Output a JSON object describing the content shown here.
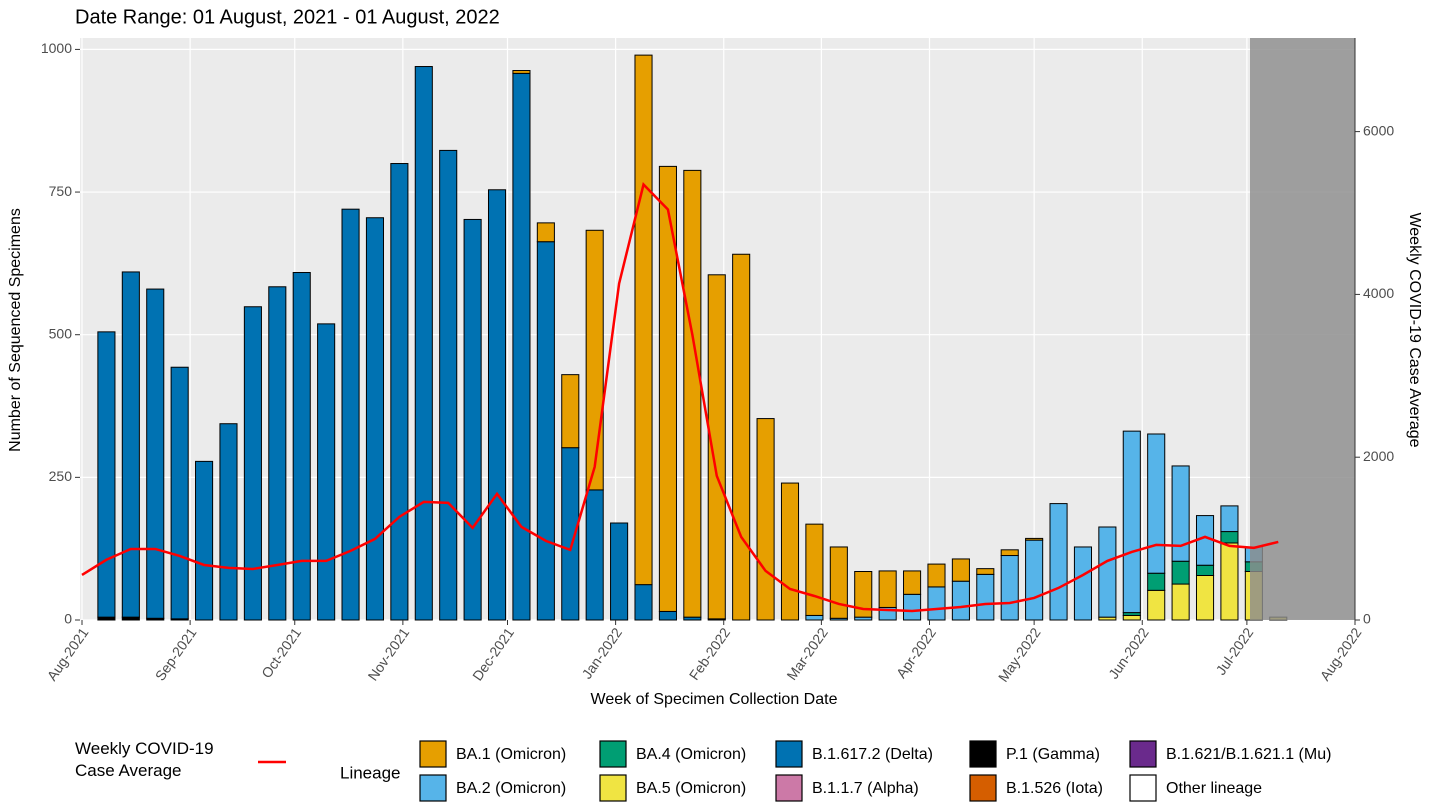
{
  "chart_data": {
    "type": "bar",
    "title": "Date Range: 01 August, 2021 - 01 August, 2022",
    "x_label": "Week of Specimen Collection Date",
    "y_label": "Number of Sequenced Specimens",
    "y2_label": "Weekly COVID-19 Case Average",
    "legend_title": "Lineage",
    "categories": [
      null,
      null,
      null,
      null,
      null,
      null,
      null,
      null,
      null,
      null,
      null,
      null,
      null,
      null,
      null,
      null,
      null,
      null,
      null,
      null,
      null,
      null,
      null,
      null,
      null,
      null,
      null,
      null,
      null,
      null,
      null,
      null,
      null,
      null,
      null,
      null,
      null,
      null,
      null,
      null,
      null,
      null,
      null,
      null,
      null,
      null,
      null,
      null,
      null,
      null
    ],
    "xlim": [
      0,
      52.1429
    ],
    "xticks": [
      {
        "value": 0,
        "label": "Aug-2021"
      },
      {
        "value": 4.4286,
        "label": "Sep-2021"
      },
      {
        "value": 8.7143,
        "label": "Oct-2021"
      },
      {
        "value": 13.1429,
        "label": "Nov-2021"
      },
      {
        "value": 17.4286,
        "label": "Dec-2021"
      },
      {
        "value": 21.8571,
        "label": "Jan-2022"
      },
      {
        "value": 26.2857,
        "label": "Feb-2022"
      },
      {
        "value": 30.2857,
        "label": "Mar-2022"
      },
      {
        "value": 34.7143,
        "label": "Apr-2022"
      },
      {
        "value": 39,
        "label": "May-2022"
      },
      {
        "value": 43.4286,
        "label": "Jun-2022"
      },
      {
        "value": 47.7143,
        "label": "Jul-2022"
      },
      {
        "value": 52.1429,
        "label": "Aug-2022"
      }
    ],
    "ylim": [
      0,
      1020
    ],
    "yticks": [
      0,
      250,
      500,
      750,
      1000
    ],
    "y2lim": [
      0,
      7150
    ],
    "y2ticks": [
      0,
      2000,
      4000,
      6000
    ],
    "grid": true,
    "series": [
      {
        "name": "BA.1 (Omicron)",
        "color": "#E69F00",
        "values": [
          0,
          0,
          0,
          0,
          0,
          0,
          0,
          0,
          0,
          0,
          0,
          0,
          0,
          0,
          0,
          0,
          0,
          0,
          5,
          33,
          128,
          455,
          0,
          928,
          780,
          783,
          603,
          641,
          353,
          240,
          160,
          125,
          80,
          64,
          41,
          40,
          39,
          10,
          10,
          3,
          0,
          0,
          0,
          0,
          0,
          0,
          0,
          0,
          0,
          0
        ]
      },
      {
        "name": "BA.2 (Omicron)",
        "color": "#56B4E9",
        "values": [
          0,
          0,
          0,
          0,
          0,
          0,
          0,
          0,
          0,
          0,
          0,
          0,
          0,
          0,
          0,
          0,
          0,
          0,
          0,
          0,
          0,
          0,
          0,
          0,
          0,
          0,
          0,
          0,
          0,
          0,
          8,
          3,
          5,
          22,
          45,
          58,
          68,
          80,
          113,
          140,
          204,
          128,
          158,
          318,
          244,
          167,
          87,
          45,
          26,
          0
        ]
      },
      {
        "name": "BA.4 (Omicron)",
        "color": "#009E73",
        "values": [
          0,
          0,
          0,
          0,
          0,
          0,
          0,
          0,
          0,
          0,
          0,
          0,
          0,
          0,
          0,
          0,
          0,
          0,
          0,
          0,
          0,
          0,
          0,
          0,
          0,
          0,
          0,
          0,
          0,
          0,
          0,
          0,
          0,
          0,
          0,
          0,
          0,
          0,
          0,
          0,
          0,
          0,
          0,
          5,
          30,
          40,
          18,
          20,
          17,
          0
        ]
      },
      {
        "name": "BA.5 (Omicron)",
        "color": "#F0E442",
        "values": [
          0,
          0,
          0,
          0,
          0,
          0,
          0,
          0,
          0,
          0,
          0,
          0,
          0,
          0,
          0,
          0,
          0,
          0,
          0,
          0,
          0,
          0,
          0,
          0,
          0,
          0,
          0,
          0,
          0,
          0,
          0,
          0,
          0,
          0,
          0,
          0,
          0,
          0,
          0,
          0,
          0,
          0,
          5,
          8,
          52,
          63,
          78,
          135,
          85,
          5
        ]
      },
      {
        "name": "B.1.617.2 (Delta)",
        "color": "#0072B2",
        "values": [
          0,
          500,
          605,
          577,
          441,
          278,
          344,
          549,
          584,
          609,
          519,
          720,
          705,
          800,
          970,
          823,
          702,
          754,
          958,
          663,
          302,
          228,
          170,
          62,
          15,
          5,
          2,
          0,
          0,
          0,
          0,
          0,
          0,
          0,
          0,
          0,
          0,
          0,
          0,
          0,
          0,
          0,
          0,
          0,
          0,
          0,
          0,
          0,
          0,
          0
        ]
      },
      {
        "name": "B.1.1.7 (Alpha)",
        "color": "#CC79A7",
        "values": [
          0,
          0,
          0,
          0,
          0,
          0,
          0,
          0,
          0,
          0,
          0,
          0,
          0,
          0,
          0,
          0,
          0,
          0,
          0,
          0,
          0,
          0,
          0,
          0,
          0,
          0,
          0,
          0,
          0,
          0,
          0,
          0,
          0,
          0,
          0,
          0,
          0,
          0,
          0,
          0,
          0,
          0,
          0,
          0,
          0,
          0,
          0,
          0,
          0,
          0
        ]
      },
      {
        "name": "P.1 (Gamma)",
        "color": "#000000",
        "values": [
          0,
          5,
          5,
          3,
          2,
          0,
          0,
          0,
          0,
          0,
          0,
          0,
          0,
          0,
          0,
          0,
          0,
          0,
          0,
          0,
          0,
          0,
          0,
          0,
          0,
          0,
          0,
          0,
          0,
          0,
          0,
          0,
          0,
          0,
          0,
          0,
          0,
          0,
          0,
          0,
          0,
          0,
          0,
          0,
          0,
          0,
          0,
          0,
          0,
          0
        ]
      },
      {
        "name": "B.1.526 (Iota)",
        "color": "#D55E00",
        "values": [
          0,
          0,
          0,
          0,
          0,
          0,
          0,
          0,
          0,
          0,
          0,
          0,
          0,
          0,
          0,
          0,
          0,
          0,
          0,
          0,
          0,
          0,
          0,
          0,
          0,
          0,
          0,
          0,
          0,
          0,
          0,
          0,
          0,
          0,
          0,
          0,
          0,
          0,
          0,
          0,
          0,
          0,
          0,
          0,
          0,
          0,
          0,
          0,
          0,
          0
        ]
      },
      {
        "name": "B.1.621/B.1.621.1 (Mu)",
        "color": "#6A2A8C",
        "values": [
          0,
          0,
          0,
          0,
          0,
          0,
          0,
          0,
          0,
          0,
          0,
          0,
          0,
          0,
          0,
          0,
          0,
          0,
          0,
          0,
          0,
          0,
          0,
          0,
          0,
          0,
          0,
          0,
          0,
          0,
          0,
          0,
          0,
          0,
          0,
          0,
          0,
          0,
          0,
          0,
          0,
          0,
          0,
          0,
          0,
          0,
          0,
          0,
          0,
          0
        ]
      },
      {
        "name": "Other lineage",
        "color": "#FFFFFF",
        "values": [
          0,
          0,
          0,
          0,
          0,
          0,
          0,
          0,
          0,
          0,
          0,
          0,
          0,
          0,
          0,
          0,
          0,
          0,
          0,
          0,
          0,
          0,
          0,
          0,
          0,
          0,
          0,
          0,
          0,
          0,
          0,
          0,
          0,
          0,
          0,
          0,
          0,
          0,
          0,
          0,
          0,
          0,
          0,
          0,
          0,
          0,
          0,
          0,
          0,
          0
        ]
      }
    ],
    "line": {
      "name": "Weekly COVID-19 Case Average",
      "color": "#FF0000",
      "axis": "y2",
      "values": [
        553,
        740,
        873,
        873,
        787,
        676,
        640,
        627,
        676,
        726,
        726,
        849,
        996,
        1267,
        1451,
        1439,
        1132,
        1550,
        1144,
        972,
        861,
        1882,
        4133,
        5350,
        5043,
        3506,
        1771,
        1021,
        603,
        381,
        295,
        197,
        135,
        123,
        111,
        135,
        160,
        197,
        209,
        271,
        394,
        553,
        726,
        836,
        923,
        910,
        1021,
        910,
        886,
        959
      ]
    }
  }
}
